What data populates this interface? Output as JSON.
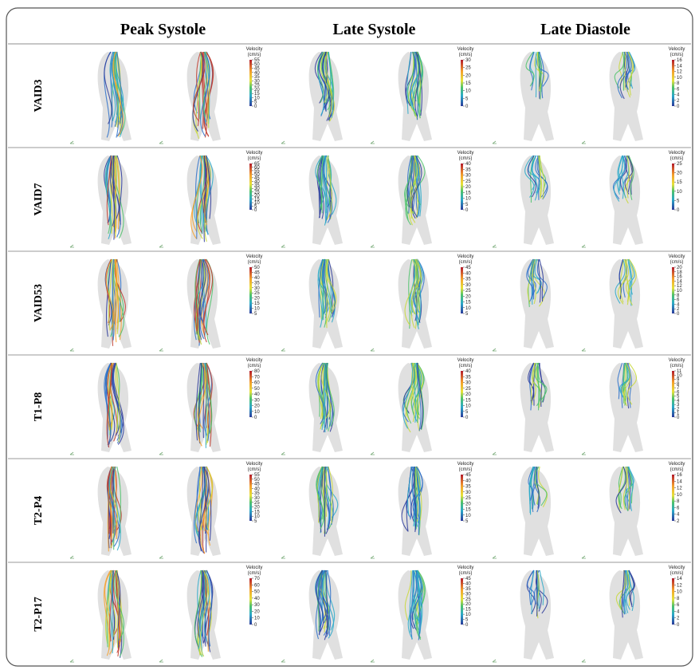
{
  "header": {
    "columns": [
      "Peak Systole",
      "Late Systole",
      "Late Diastole"
    ]
  },
  "colorbar_label": [
    "Velocity",
    "(cm/s)"
  ],
  "rows": [
    {
      "label": "VAID3",
      "colorbars": [
        [
          55,
          50,
          45,
          40,
          35,
          30,
          25,
          20,
          15,
          10,
          5,
          0
        ],
        [
          30,
          25,
          20,
          15,
          10,
          5,
          0
        ],
        [
          16,
          14,
          12,
          10,
          8,
          6,
          4,
          2,
          0
        ]
      ]
    },
    {
      "label": "VAID7",
      "colorbars": [
        [
          65,
          60,
          55,
          50,
          45,
          40,
          35,
          30,
          25,
          20,
          15,
          10,
          5,
          0
        ],
        [
          40,
          35,
          30,
          25,
          20,
          15,
          10,
          5,
          0
        ],
        [
          25,
          20,
          15,
          10,
          5,
          0
        ]
      ]
    },
    {
      "label": "VAID53",
      "colorbars": [
        [
          50,
          45,
          40,
          35,
          30,
          25,
          20,
          15,
          10,
          5
        ],
        [
          45,
          40,
          35,
          30,
          25,
          20,
          15,
          10,
          5
        ],
        [
          20,
          18,
          16,
          14,
          12,
          10,
          8,
          6,
          4,
          2,
          0
        ]
      ]
    },
    {
      "label": "T1-P8",
      "colorbars": [
        [
          80,
          70,
          60,
          50,
          40,
          30,
          20,
          10,
          0
        ],
        [
          40,
          35,
          30,
          25,
          20,
          15,
          10,
          5,
          0
        ],
        [
          11,
          10,
          9,
          8,
          7,
          6,
          5,
          4,
          3,
          2,
          1,
          0
        ]
      ]
    },
    {
      "label": "T2-P4",
      "colorbars": [
        [
          55,
          50,
          45,
          40,
          35,
          30,
          25,
          20,
          15,
          10,
          5
        ],
        [
          45,
          40,
          35,
          30,
          25,
          20,
          15,
          10,
          5
        ],
        [
          16,
          14,
          12,
          10,
          8,
          6,
          4,
          2
        ]
      ]
    },
    {
      "label": "T2-P17",
      "colorbars": [
        [
          70,
          60,
          50,
          40,
          30,
          20,
          10,
          0
        ],
        [
          45,
          40,
          35,
          30,
          25,
          20,
          15,
          10,
          5,
          0
        ],
        [
          14,
          12,
          10,
          8,
          6,
          4,
          2,
          0
        ]
      ]
    }
  ]
}
